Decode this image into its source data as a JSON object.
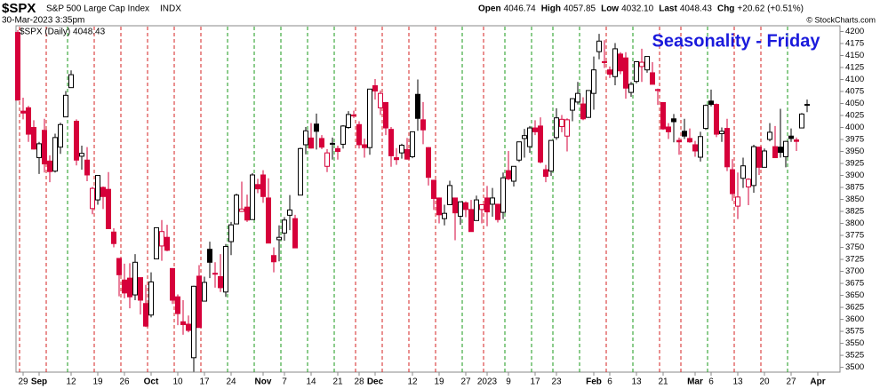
{
  "chart_data": {
    "type": "candlestick",
    "symbol": "$SPX",
    "name": "S&P 500 Large Cap Index",
    "exchange": "INDX",
    "date": "30-Mar-2023 3:35pm",
    "quote": {
      "Open": "4046.74",
      "High": "4057.85",
      "Low": "4032.10",
      "Last": "4048.43",
      "Chg": "+20.62 (+0.51%)"
    },
    "credit": "© StockCharts.com",
    "legend": "$SPX (Daily) 4048.43",
    "title": "Seasonality - Friday",
    "title_color": "#1a1adc",
    "up_color": "#000000",
    "down_color": "#d6003a",
    "last_color": "#f5f500",
    "friday_up_color": "#1a9a1a",
    "friday_down_color": "#d62020",
    "ylim": [
      3490,
      4212
    ],
    "yticks": [
      3500,
      3525,
      3550,
      3575,
      3600,
      3625,
      3650,
      3675,
      3700,
      3725,
      3750,
      3775,
      3800,
      3825,
      3850,
      3875,
      3900,
      3925,
      3950,
      3975,
      4000,
      4025,
      4050,
      4075,
      4100,
      4125,
      4150,
      4175,
      4200
    ],
    "x_labels": [
      {
        "label": "29",
        "at": 1
      },
      {
        "label": "Sep",
        "at": 4
      },
      {
        "label": "12",
        "at": 10
      },
      {
        "label": "19",
        "at": 15
      },
      {
        "label": "26",
        "at": 20
      },
      {
        "label": "Oct",
        "at": 25
      },
      {
        "label": "10",
        "at": 30
      },
      {
        "label": "17",
        "at": 35
      },
      {
        "label": "24",
        "at": 40
      },
      {
        "label": "Nov",
        "at": 46
      },
      {
        "label": "7",
        "at": 50
      },
      {
        "label": "14",
        "at": 55
      },
      {
        "label": "21",
        "at": 60
      },
      {
        "label": "28",
        "at": 64
      },
      {
        "label": "Dec",
        "at": 67
      },
      {
        "label": "12",
        "at": 74
      },
      {
        "label": "19",
        "at": 79
      },
      {
        "label": "27",
        "at": 84
      },
      {
        "label": "2023",
        "at": 88
      },
      {
        "label": "9",
        "at": 92
      },
      {
        "label": "17",
        "at": 97
      },
      {
        "label": "23",
        "at": 101
      },
      {
        "label": "Feb",
        "at": 108
      },
      {
        "label": "6",
        "at": 111
      },
      {
        "label": "13",
        "at": 116
      },
      {
        "label": "21",
        "at": 121
      },
      {
        "label": "Mar",
        "at": 127
      },
      {
        "label": "6",
        "at": 130
      },
      {
        "label": "13",
        "at": 135
      },
      {
        "label": "20",
        "at": 140
      },
      {
        "label": "27",
        "at": 145
      },
      {
        "label": "Apr",
        "at": 150
      }
    ],
    "friday_index": [
      0,
      5,
      9,
      14,
      19,
      24,
      29,
      34,
      39,
      44,
      49,
      54,
      59,
      63,
      68,
      73,
      78,
      83,
      87,
      91,
      96,
      100,
      105,
      110,
      115,
      120,
      124,
      129,
      134,
      139,
      144
    ],
    "candles": [
      [
        4198,
        4203,
        4057,
        4057
      ],
      [
        4034,
        4062,
        4017,
        4030
      ],
      [
        4041,
        4045,
        3970,
        3986
      ],
      [
        4000,
        4015,
        3954,
        3955
      ],
      [
        3937,
        3970,
        3903,
        3966
      ],
      [
        3994,
        4018,
        3906,
        3924
      ],
      [
        3930,
        3942,
        3886,
        3908
      ],
      [
        3909,
        3987,
        3906,
        3979
      ],
      [
        3959,
        4010,
        3945,
        4006
      ],
      [
        4022,
        4076,
        4022,
        4067
      ],
      [
        4083,
        4119,
        4083,
        4110
      ],
      [
        4013,
        4017,
        3921,
        3932
      ],
      [
        3940,
        3962,
        3912,
        3946
      ],
      [
        3932,
        3959,
        3888,
        3901
      ],
      [
        3831,
        3876,
        3819,
        3873
      ],
      [
        3849,
        3900,
        3839,
        3900
      ],
      [
        3875,
        3877,
        3830,
        3856
      ],
      [
        3871,
        3907,
        3789,
        3789
      ],
      [
        3782,
        3790,
        3750,
        3758
      ],
      [
        3727,
        3727,
        3648,
        3693
      ],
      [
        3682,
        3716,
        3644,
        3655
      ],
      [
        3686,
        3717,
        3623,
        3647
      ],
      [
        3651,
        3736,
        3640,
        3719
      ],
      [
        3687,
        3687,
        3610,
        3640
      ],
      [
        3633,
        3672,
        3584,
        3586
      ],
      [
        3609,
        3698,
        3604,
        3678
      ],
      [
        3726,
        3791,
        3726,
        3791
      ],
      [
        3753,
        3807,
        3722,
        3783
      ],
      [
        3771,
        3797,
        3742,
        3744
      ],
      [
        3706,
        3706,
        3632,
        3640
      ],
      [
        3647,
        3652,
        3588,
        3612
      ],
      [
        3595,
        3640,
        3568,
        3589
      ],
      [
        3590,
        3608,
        3573,
        3577
      ],
      [
        3520,
        3670,
        3491,
        3669
      ],
      [
        3690,
        3713,
        3583,
        3583
      ],
      [
        3638,
        3689,
        3638,
        3677
      ],
      [
        3746,
        3762,
        3686,
        3719
      ],
      [
        3696,
        3719,
        3666,
        3695
      ],
      [
        3689,
        3736,
        3657,
        3666
      ],
      [
        3657,
        3757,
        3647,
        3752
      ],
      [
        3762,
        3803,
        3734,
        3797
      ],
      [
        3799,
        3862,
        3799,
        3859
      ],
      [
        3825,
        3887,
        3824,
        3830
      ],
      [
        3834,
        3860,
        3803,
        3807
      ],
      [
        3808,
        3905,
        3808,
        3901
      ],
      [
        3881,
        3893,
        3863,
        3872
      ],
      [
        3901,
        3911,
        3843,
        3856
      ],
      [
        3853,
        3894,
        3759,
        3759
      ],
      [
        3733,
        3750,
        3698,
        3720
      ],
      [
        3766,
        3796,
        3721,
        3771
      ],
      [
        3780,
        3813,
        3764,
        3807
      ],
      [
        3817,
        3859,
        3786,
        3828
      ],
      [
        3810,
        3818,
        3749,
        3749
      ],
      [
        3859,
        3958,
        3859,
        3956
      ],
      [
        3964,
        4001,
        3944,
        3993
      ],
      [
        3978,
        4009,
        3956,
        3957
      ],
      [
        4007,
        4029,
        3954,
        3992
      ],
      [
        3977,
        3984,
        3955,
        3959
      ],
      [
        3919,
        3955,
        3907,
        3947
      ],
      [
        3967,
        3979,
        3933,
        3965
      ],
      [
        3956,
        3962,
        3933,
        3950
      ],
      [
        3965,
        4005,
        3956,
        4003
      ],
      [
        4000,
        4034,
        3997,
        4027
      ],
      [
        4024,
        4035,
        4020,
        4026
      ],
      [
        4006,
        4013,
        3956,
        3964
      ],
      [
        3964,
        3977,
        3937,
        3958
      ],
      [
        3958,
        4080,
        3943,
        4080
      ],
      [
        4087,
        4101,
        4058,
        4076
      ],
      [
        4041,
        4077,
        4026,
        4071
      ],
      [
        4052,
        4053,
        3984,
        3999
      ],
      [
        3996,
        4001,
        3918,
        3941
      ],
      [
        3937,
        3957,
        3922,
        3933
      ],
      [
        3947,
        3966,
        3935,
        3963
      ],
      [
        3954,
        3978,
        3933,
        3934
      ],
      [
        3939,
        3991,
        3936,
        3991
      ],
      [
        4069,
        4100,
        3993,
        4019
      ],
      [
        4016,
        4053,
        3965,
        3995
      ],
      [
        3958,
        3959,
        3879,
        3896
      ],
      [
        3890,
        3890,
        3828,
        3852
      ],
      [
        3853,
        3854,
        3800,
        3818
      ],
      [
        3810,
        3839,
        3796,
        3821
      ],
      [
        3839,
        3889,
        3839,
        3879
      ],
      [
        3853,
        3853,
        3765,
        3822
      ],
      [
        3815,
        3845,
        3797,
        3845
      ],
      [
        3843,
        3846,
        3813,
        3829
      ],
      [
        3829,
        3849,
        3783,
        3783
      ],
      [
        3806,
        3858,
        3806,
        3849
      ],
      [
        3829,
        3840,
        3800,
        3839
      ],
      [
        3853,
        3878,
        3794,
        3824
      ],
      [
        3840,
        3874,
        3814,
        3853
      ],
      [
        3840,
        3840,
        3802,
        3808
      ],
      [
        3823,
        3906,
        3809,
        3895
      ],
      [
        3910,
        3951,
        3890,
        3893
      ],
      [
        3888,
        3919,
        3877,
        3919
      ],
      [
        3932,
        3970,
        3928,
        3970
      ],
      [
        3977,
        3997,
        3937,
        3983
      ],
      [
        3960,
        4003,
        3947,
        3999
      ],
      [
        3999,
        4015,
        3984,
        3991
      ],
      [
        4003,
        4021,
        3925,
        3928
      ],
      [
        3912,
        3922,
        3886,
        3898
      ],
      [
        3909,
        3973,
        3899,
        3973
      ],
      [
        3979,
        4040,
        3974,
        4020
      ],
      [
        4002,
        4026,
        3990,
        4017
      ],
      [
        3982,
        4019,
        3950,
        4016
      ],
      [
        4036,
        4061,
        4013,
        4060
      ],
      [
        4053,
        4095,
        4048,
        4071
      ],
      [
        4049,
        4063,
        4015,
        4018
      ],
      [
        4021,
        4077,
        4020,
        4077
      ],
      [
        4071,
        4148,
        4037,
        4120
      ],
      [
        4158,
        4195,
        4142,
        4180
      ],
      [
        4137,
        4182,
        4124,
        4136
      ],
      [
        4120,
        4127,
        4103,
        4111
      ],
      [
        4106,
        4176,
        4088,
        4164
      ],
      [
        4153,
        4157,
        4111,
        4118
      ],
      [
        4145,
        4157,
        4060,
        4082
      ],
      [
        4073,
        4095,
        4064,
        4090
      ],
      [
        4096,
        4138,
        4092,
        4137
      ],
      [
        4127,
        4164,
        4095,
        4136
      ],
      [
        4120,
        4148,
        4114,
        4148
      ],
      [
        4114,
        4136,
        4090,
        4090
      ],
      [
        4077,
        4081,
        4047,
        4079
      ],
      [
        4052,
        4052,
        3995,
        3997
      ],
      [
        4001,
        4009,
        3976,
        3991
      ],
      [
        4018,
        4028,
        3969,
        4012
      ],
      [
        3973,
        3979,
        3943,
        3970
      ],
      [
        3992,
        4018,
        3976,
        3982
      ],
      [
        3977,
        3998,
        3968,
        3970
      ],
      [
        3964,
        3972,
        3939,
        3951
      ],
      [
        3938,
        3991,
        3929,
        3981
      ],
      [
        3998,
        4048,
        3995,
        4046
      ],
      [
        4055,
        4079,
        4044,
        4048
      ],
      [
        4048,
        4050,
        3980,
        3986
      ],
      [
        3987,
        4000,
        3970,
        3992
      ],
      [
        3998,
        4018,
        3909,
        3918
      ],
      [
        3912,
        3934,
        3847,
        3862
      ],
      [
        3836,
        3906,
        3809,
        3855
      ],
      [
        3894,
        3937,
        3874,
        3920
      ],
      [
        3876,
        3894,
        3838,
        3892
      ],
      [
        3879,
        3964,
        3864,
        3960
      ],
      [
        3959,
        3959,
        3901,
        3917
      ],
      [
        3917,
        3956,
        3917,
        3951
      ],
      [
        3975,
        4009,
        3971,
        3990
      ],
      [
        3960,
        4003,
        3937,
        3937
      ],
      [
        3959,
        4039,
        3937,
        3948
      ],
      [
        3939,
        3972,
        3917,
        3971
      ],
      [
        3982,
        3998,
        3970,
        3977
      ],
      [
        3974,
        3979,
        3951,
        3971
      ],
      [
        3999,
        4030,
        3999,
        4028
      ],
      [
        4047,
        4058,
        4032,
        4048
      ]
    ]
  }
}
